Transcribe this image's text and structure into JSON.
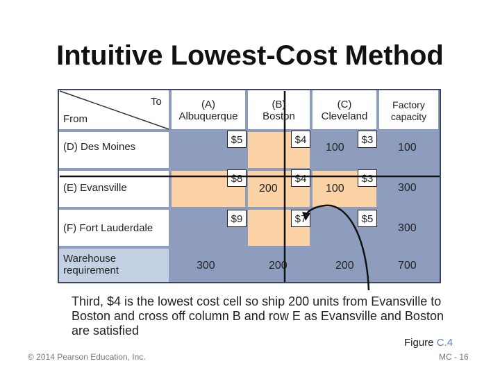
{
  "title": "Intuitive Lowest-Cost Method",
  "table": {
    "corner_to": "To",
    "corner_from": "From",
    "columns": [
      "(A)\nAlbuquerque",
      "(B)\nBoston",
      "(C)\nCleveland",
      "Factory\ncapacity"
    ],
    "rows": [
      {
        "label": "(D) Des Moines",
        "costs": [
          "$5",
          "$4",
          "$3"
        ],
        "shipments": [
          "",
          "",
          "100"
        ],
        "capacity": "100"
      },
      {
        "label": "(E) Evansville",
        "costs": [
          "$8",
          "$4",
          "$3"
        ],
        "shipments": [
          "",
          "200",
          "100"
        ],
        "capacity": "300"
      },
      {
        "label": "(F) Fort Lauderdale",
        "costs": [
          "$9",
          "$7",
          "$5"
        ],
        "shipments": [
          "",
          "",
          ""
        ],
        "capacity": "300"
      }
    ],
    "requirement": {
      "label": "Warehouse\nrequirement",
      "values": [
        "300",
        "200",
        "200"
      ],
      "total": "700"
    }
  },
  "caption": "Third, $4 is the lowest cost cell so ship 200 units from Evansville to Boston and cross off column B and row E as Evansville and Boston are satisfied",
  "figure": {
    "prefix": "Figure ",
    "number": "C.4"
  },
  "copyright": "© 2014 Pearson Education, Inc.",
  "page_number": "MC - 16",
  "colors": {
    "table_blue": "#8e9dbe",
    "shipped_orange": "#fbd1a6",
    "light_blue": "#c4d1e5"
  }
}
